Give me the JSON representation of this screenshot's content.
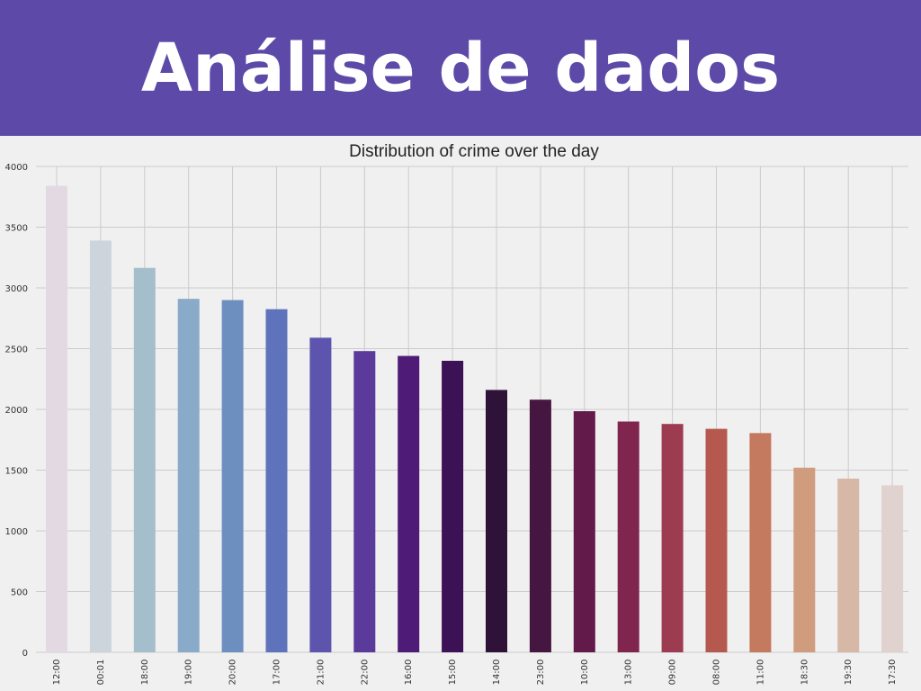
{
  "header": {
    "title": "Análise de dados"
  },
  "chart_data": {
    "type": "bar",
    "title": "Distribution of crime over the day",
    "xlabel": "",
    "ylabel": "",
    "ylim": [
      0,
      4000
    ],
    "yticks": [
      0,
      500,
      1000,
      1500,
      2000,
      2500,
      3000,
      3500,
      4000
    ],
    "grid": true,
    "categories": [
      "12:00",
      "00:01",
      "18:00",
      "19:00",
      "20:00",
      "17:00",
      "21:00",
      "22:00",
      "16:00",
      "15:00",
      "14:00",
      "23:00",
      "10:00",
      "13:00",
      "09:00",
      "08:00",
      "11:00",
      "18:30",
      "19:30",
      "17:30"
    ],
    "values": [
      3840,
      3390,
      3165,
      2910,
      2900,
      2825,
      2590,
      2480,
      2440,
      2400,
      2160,
      2080,
      1985,
      1900,
      1880,
      1840,
      1805,
      1520,
      1430,
      1375
    ],
    "colors": [
      "#e2d9e2",
      "#ccd4dc",
      "#a5becb",
      "#89aac8",
      "#6d8fc0",
      "#5f72bc",
      "#5d54ae",
      "#5a3a9b",
      "#4e1c76",
      "#3d1156",
      "#2e1238",
      "#451740",
      "#611a4a",
      "#80264e",
      "#9d3c51",
      "#b5594f",
      "#c47a5e",
      "#d09c7e",
      "#d7b8a6",
      "#dfd2cf"
    ]
  }
}
